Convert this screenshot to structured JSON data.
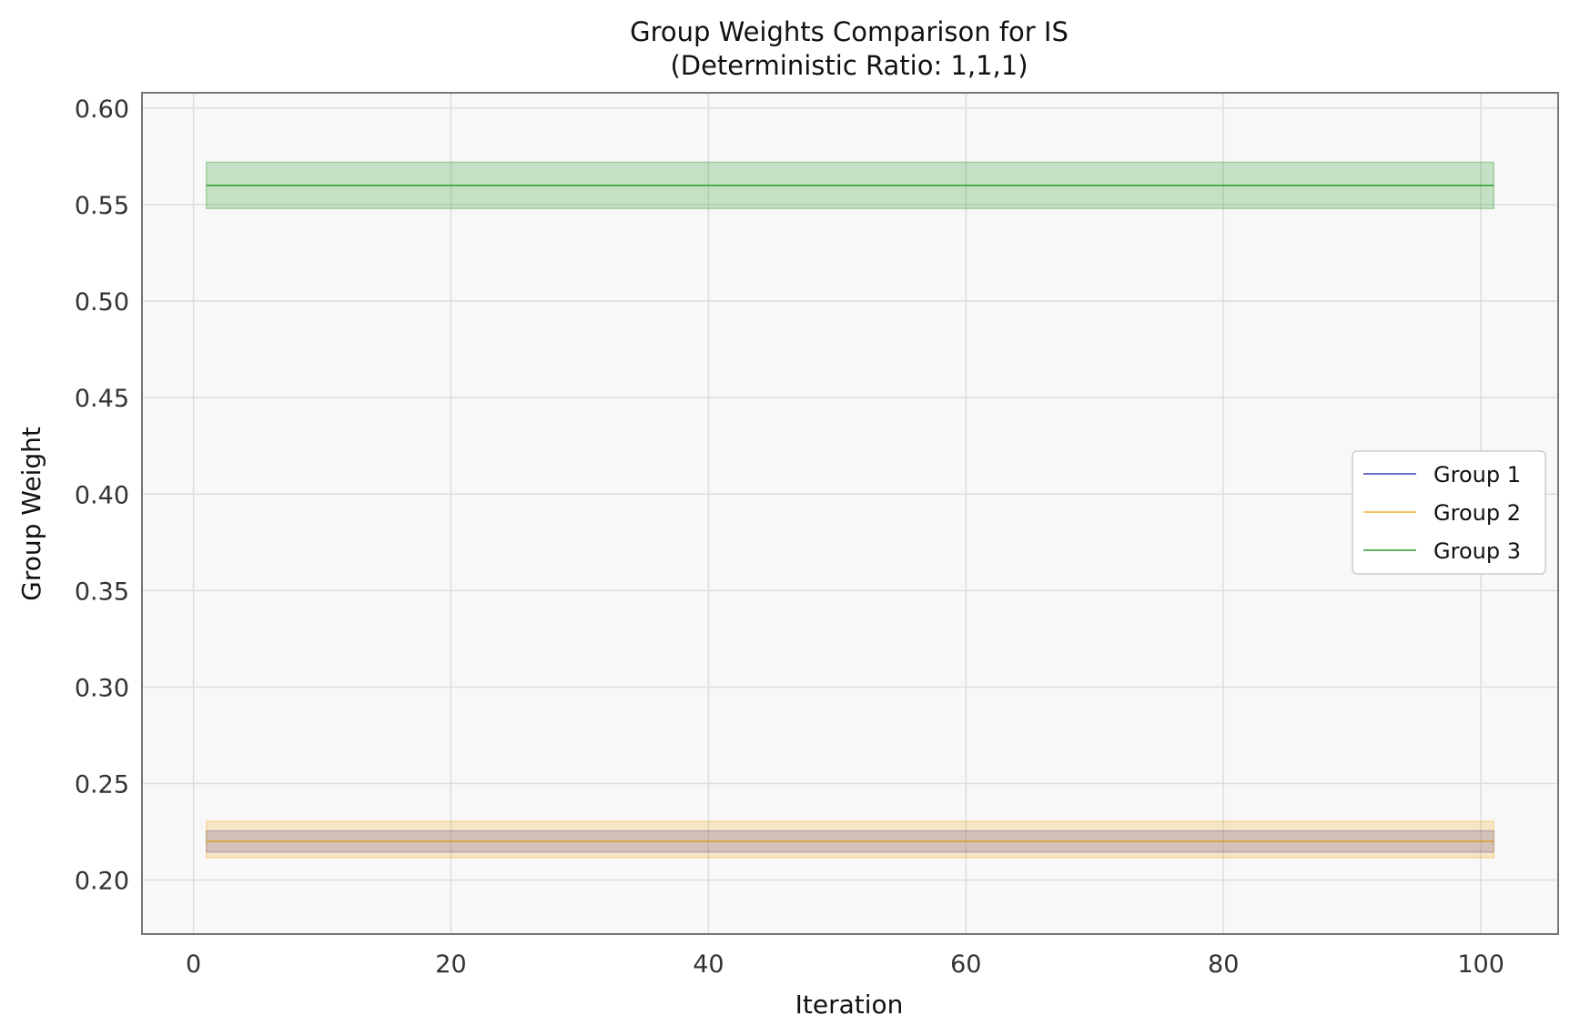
{
  "chart_data": {
    "type": "line",
    "title": "Group Weights Comparison for IS",
    "subtitle": "(Deterministic Ratio: 1,1,1)",
    "xlabel": "Iteration",
    "ylabel": "Group Weight",
    "xlim": [
      -4,
      106
    ],
    "ylim": [
      0.172,
      0.608
    ],
    "xticks": [
      0,
      20,
      40,
      60,
      80,
      100
    ],
    "xtick_labels": [
      "0",
      "20",
      "40",
      "60",
      "80",
      "100"
    ],
    "yticks": [
      0.2,
      0.25,
      0.3,
      0.35,
      0.4,
      0.45,
      0.5,
      0.55,
      0.6
    ],
    "ytick_labels": [
      "0.20",
      "0.25",
      "0.30",
      "0.35",
      "0.40",
      "0.45",
      "0.50",
      "0.55",
      "0.60"
    ],
    "grid": true,
    "legend_position": "center-right",
    "series": [
      {
        "name": "Group 1",
        "color": "#3b3bb0",
        "x_range": [
          1,
          101
        ],
        "value": 0.22,
        "band": [
          0.2145,
          0.2255
        ]
      },
      {
        "name": "Group 2",
        "color": "#f0b030",
        "x_range": [
          1,
          101
        ],
        "value": 0.22,
        "band": [
          0.2115,
          0.2305
        ]
      },
      {
        "name": "Group 3",
        "color": "#2a9a2a",
        "x_range": [
          1,
          101
        ],
        "value": 0.56,
        "band": [
          0.548,
          0.572
        ]
      }
    ]
  },
  "legend": {
    "items": [
      "Group 1",
      "Group 2",
      "Group 3"
    ]
  }
}
